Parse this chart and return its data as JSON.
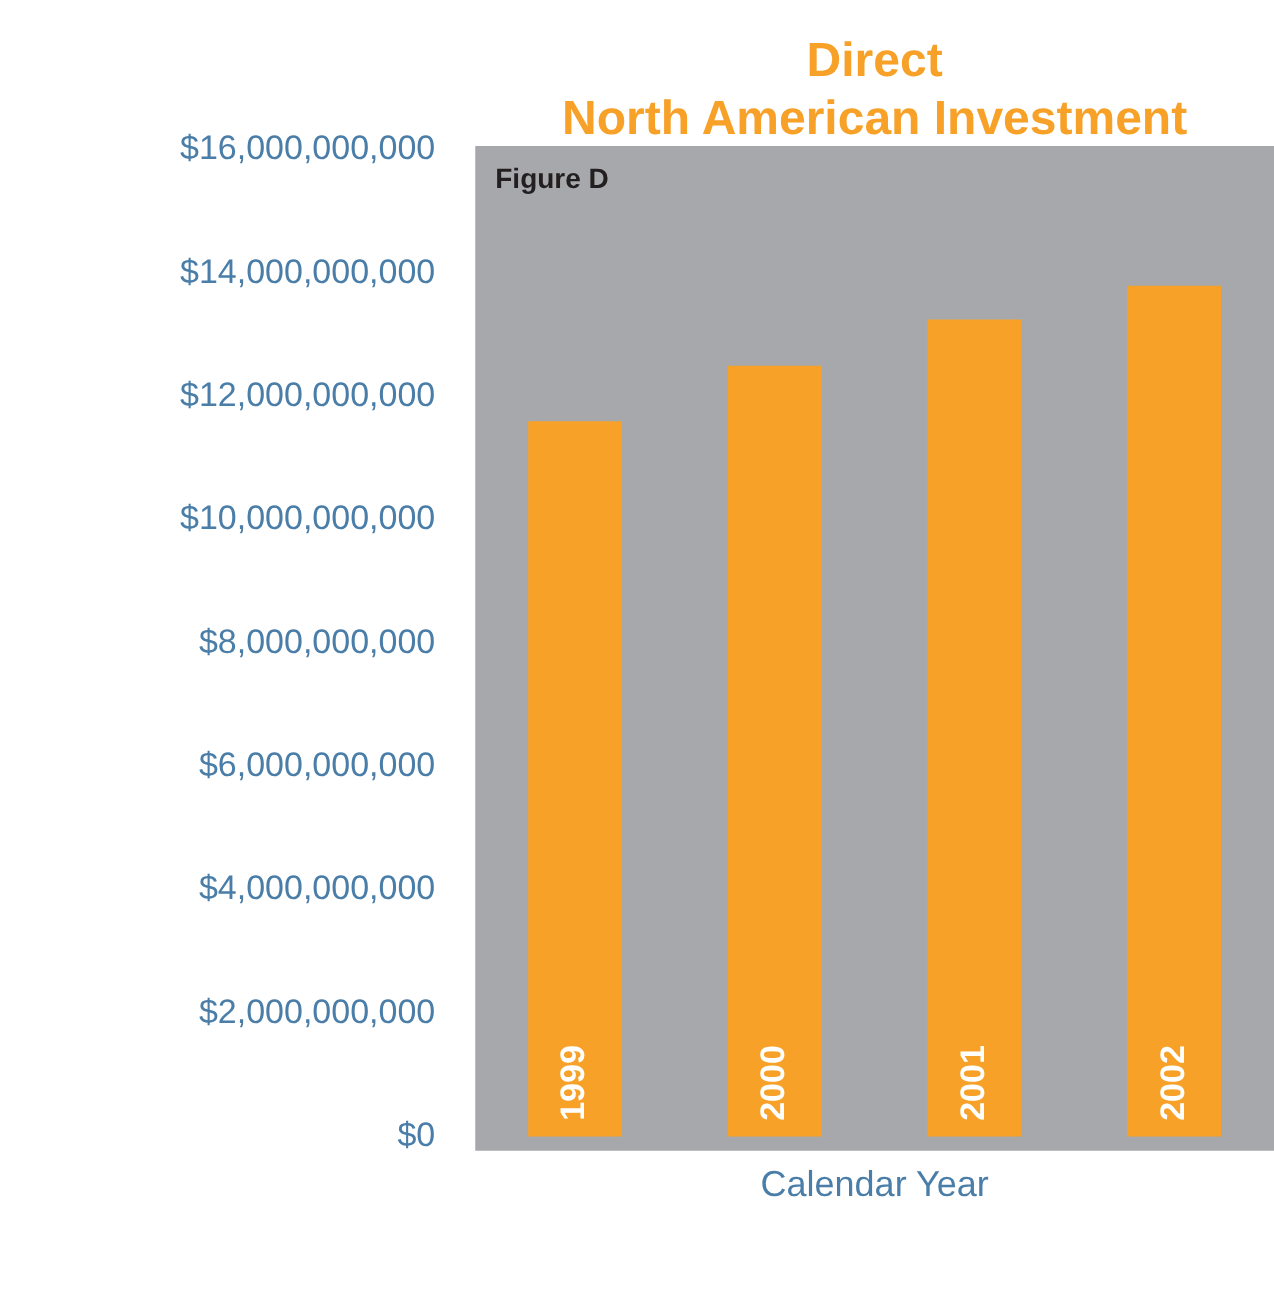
{
  "chart_data": {
    "type": "bar",
    "title": "Direct\nNorth American Investment",
    "xlabel": "Calendar Year",
    "annotations": [
      "Figure D"
    ],
    "categories": [
      "1999",
      "2000",
      "2001",
      "2002"
    ],
    "values": [
      11600000000,
      12500000000,
      13250000000,
      13800000000
    ],
    "color": "#f7a128",
    "ylim": [
      0,
      16000000000
    ],
    "yticks": [
      {
        "value": 0,
        "label": "$0"
      },
      {
        "value": 2000000000,
        "label": "$2,000,000,000"
      },
      {
        "value": 4000000000,
        "label": "$4,000,000,000"
      },
      {
        "value": 6000000000,
        "label": "$6,000,000,000"
      },
      {
        "value": 8000000000,
        "label": "$8,000,000,000"
      },
      {
        "value": 10000000000,
        "label": "$10,000,000,000"
      },
      {
        "value": 12000000000,
        "label": "$12,000,000,000"
      },
      {
        "value": 14000000000,
        "label": "$14,000,000,000"
      },
      {
        "value": 16000000000,
        "label": "$16,000,000,000"
      }
    ],
    "grid": false,
    "legend": false
  }
}
